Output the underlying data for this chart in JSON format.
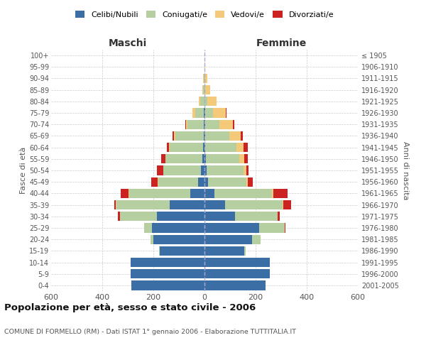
{
  "age_groups": [
    "0-4",
    "5-9",
    "10-14",
    "15-19",
    "20-24",
    "25-29",
    "30-34",
    "35-39",
    "40-44",
    "45-49",
    "50-54",
    "55-59",
    "60-64",
    "65-69",
    "70-74",
    "75-79",
    "80-84",
    "85-89",
    "90-94",
    "95-99",
    "100+"
  ],
  "birth_years": [
    "2001-2005",
    "1996-2000",
    "1991-1995",
    "1986-1990",
    "1981-1985",
    "1976-1980",
    "1971-1975",
    "1966-1970",
    "1961-1965",
    "1956-1960",
    "1951-1955",
    "1946-1950",
    "1941-1945",
    "1936-1940",
    "1931-1935",
    "1926-1930",
    "1921-1925",
    "1916-1920",
    "1911-1915",
    "1906-1910",
    "≤ 1905"
  ],
  "maschi": {
    "celibi": [
      285,
      290,
      290,
      175,
      200,
      205,
      185,
      135,
      55,
      25,
      15,
      7,
      5,
      4,
      2,
      2,
      0,
      0,
      0,
      0,
      0
    ],
    "coniugati": [
      0,
      0,
      0,
      3,
      10,
      30,
      145,
      210,
      240,
      155,
      145,
      145,
      130,
      110,
      65,
      35,
      18,
      5,
      3,
      0,
      0
    ],
    "vedovi": [
      0,
      0,
      0,
      0,
      0,
      0,
      0,
      2,
      3,
      2,
      2,
      2,
      3,
      5,
      5,
      10,
      5,
      3,
      2,
      0,
      0
    ],
    "divorziati": [
      0,
      0,
      0,
      0,
      2,
      0,
      10,
      5,
      30,
      25,
      25,
      15,
      10,
      5,
      3,
      0,
      0,
      0,
      0,
      0,
      0
    ]
  },
  "femmine": {
    "nubili": [
      240,
      255,
      255,
      155,
      185,
      215,
      120,
      80,
      40,
      15,
      8,
      5,
      4,
      3,
      2,
      2,
      0,
      0,
      0,
      0,
      0
    ],
    "coniugate": [
      0,
      0,
      0,
      5,
      35,
      100,
      165,
      225,
      225,
      150,
      145,
      130,
      120,
      95,
      55,
      30,
      12,
      4,
      3,
      0,
      0
    ],
    "vedove": [
      0,
      0,
      0,
      0,
      0,
      0,
      2,
      3,
      5,
      5,
      10,
      20,
      30,
      45,
      55,
      50,
      35,
      18,
      8,
      2,
      0
    ],
    "divorziate": [
      0,
      0,
      0,
      0,
      0,
      3,
      8,
      30,
      55,
      20,
      10,
      15,
      15,
      8,
      5,
      5,
      0,
      0,
      0,
      0,
      0
    ]
  },
  "colors": {
    "celibi": "#3a6ea5",
    "coniugati": "#b5cfa0",
    "vedovi": "#f5c97a",
    "divorziati": "#cc2222"
  },
  "xlim": 600,
  "title": "Popolazione per età, sesso e stato civile - 2006",
  "subtitle": "COMUNE DI FORMELLO (RM) - Dati ISTAT 1° gennaio 2006 - Elaborazione TUTTITALIA.IT",
  "ylabel_left": "Fasce di età",
  "ylabel_right": "Anni di nascita",
  "xlabel_left": "Maschi",
  "xlabel_right": "Femmine",
  "background_color": "#ffffff",
  "grid_color": "#cccccc"
}
